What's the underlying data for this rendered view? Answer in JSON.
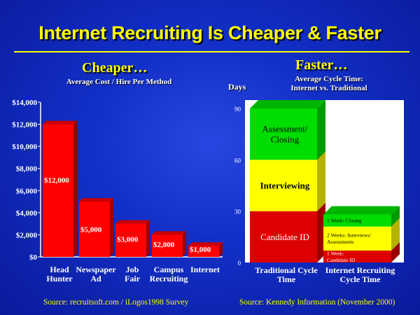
{
  "title": "Internet Recruiting Is Cheaper & Faster",
  "left": {
    "heading": "Cheaper…",
    "subheading": "Average Cost / Hire Per Method",
    "source": "Source: recruitsoft.com / iLogos1998 Survey"
  },
  "right": {
    "heading": "Faster…",
    "subheading_1": "Average Cycle Time:",
    "subheading_2": "Internet vs. Traditional",
    "ylabel": "Days",
    "source": "Source: Kennedy Information (November 2000)"
  },
  "colors": {
    "bar_red": "#ff0000",
    "stack_green": "#00dd00",
    "stack_yellow": "#ffff00",
    "stack_red": "#dd0000",
    "title_yellow": "#ffff00"
  },
  "chart_data": [
    {
      "type": "bar",
      "title": "Average Cost / Hire Per Method",
      "categories": [
        [
          "Head",
          "Hunter"
        ],
        [
          "Newspaper",
          "Ad"
        ],
        [
          "Job",
          "Fair"
        ],
        [
          "Campus",
          "Recruiting"
        ],
        [
          "Internet"
        ]
      ],
      "values": [
        12000,
        5000,
        3000,
        2000,
        1000
      ],
      "value_labels": [
        "$12,000",
        "$5,000",
        "$3,000",
        "$2,000",
        "$1,000"
      ],
      "yticks": [
        "$0",
        "$2,000",
        "$4,000",
        "$6,000",
        "$8,000",
        "$10,000",
        "$12,000",
        "$14,000"
      ],
      "ylim": [
        0,
        14000
      ]
    },
    {
      "type": "bar",
      "stacked": true,
      "ylabel": "Days",
      "ylim": [
        0,
        90
      ],
      "yticks": [
        "0",
        "30",
        "60",
        "90"
      ],
      "categories": [
        [
          "Traditional Cycle",
          "Time"
        ],
        [
          "Internet Recruiting",
          "Cycle Time"
        ]
      ],
      "series": [
        {
          "labels": [
            [
              "Candidate ID"
            ],
            [
              "1 Week:",
              "Candidate ID"
            ]
          ],
          "values": [
            30,
            7
          ]
        },
        {
          "labels": [
            [
              "Interviewing"
            ],
            [
              "2 Weeks: Interviews/",
              "Assessments"
            ]
          ],
          "values": [
            30,
            14
          ]
        },
        {
          "labels": [
            [
              "Assessment/",
              "Closing"
            ],
            [
              "1 Week: Closing"
            ]
          ],
          "values": [
            30,
            7
          ]
        }
      ]
    }
  ]
}
